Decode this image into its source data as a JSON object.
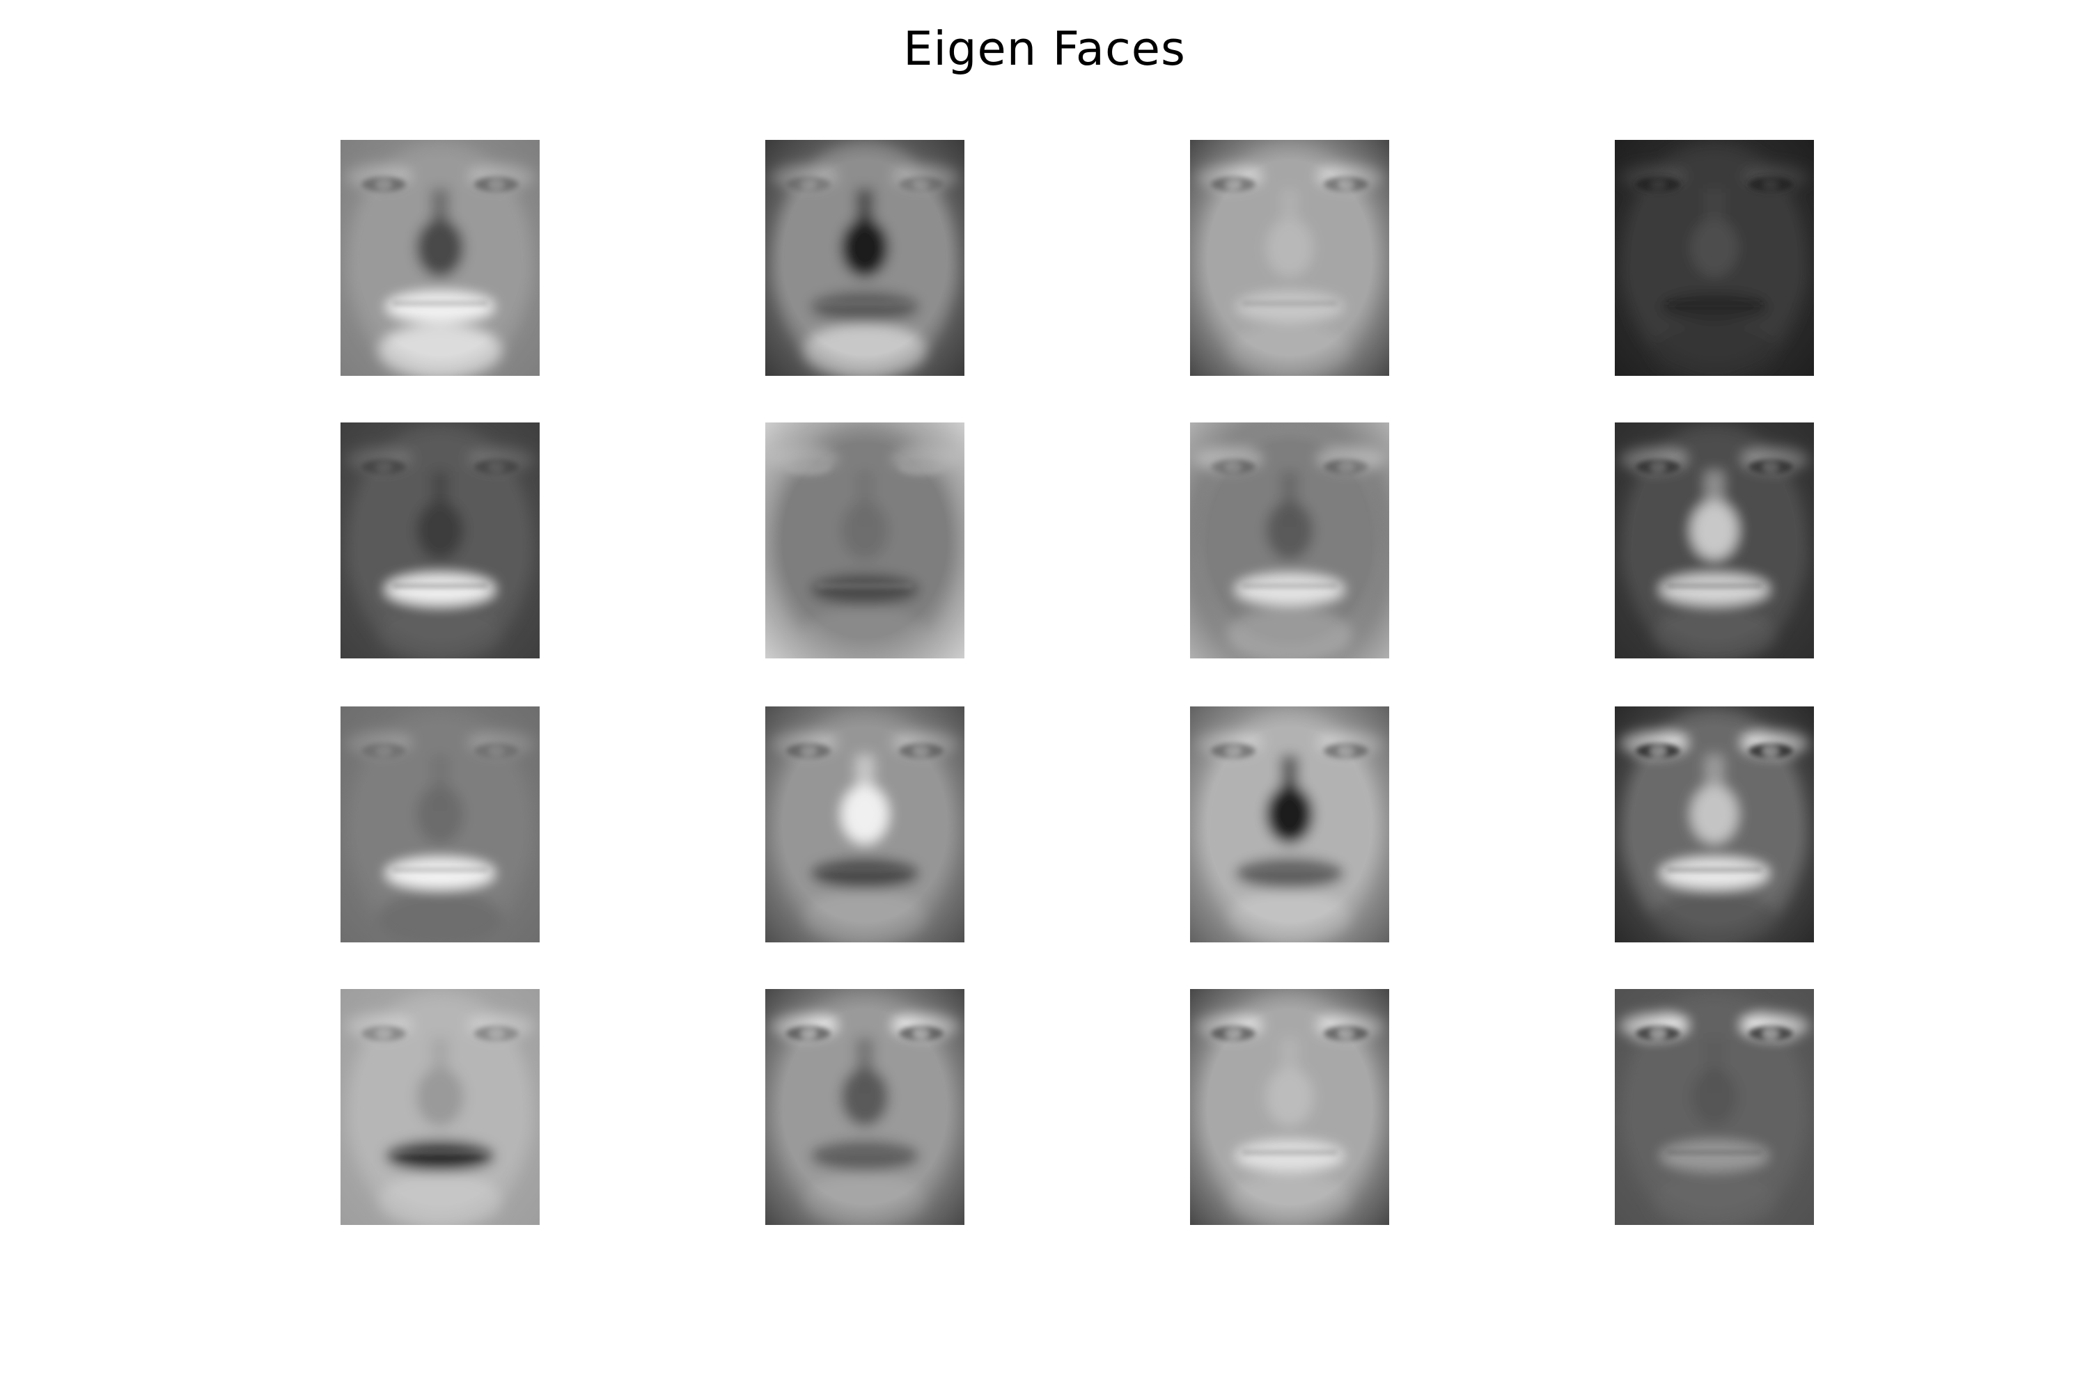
{
  "figure": {
    "title": "Eigen Faces",
    "rows": 4,
    "cols": 4
  },
  "panels": [
    {
      "name": "eigenface-1",
      "bg": "#8c8c8c",
      "face": "#9a9a9a",
      "brow": "#b4b4b4",
      "eyes": "#6e6e6e",
      "nose": "#4a4a4a",
      "mouth": "#f2f2f2",
      "chin": "#dcdcdc",
      "edge": "#7a7a7a"
    },
    {
      "name": "eigenface-2",
      "bg": "#6a6a6a",
      "face": "#8e8e8e",
      "brow": "#a8a8a8",
      "eyes": "#7c7c7c",
      "nose": "#1e1e1e",
      "mouth": "#5a5a5a",
      "chin": "#c8c8c8",
      "edge": "#2a2a2a"
    },
    {
      "name": "eigenface-3",
      "bg": "#9a9a9a",
      "face": "#a6a6a6",
      "brow": "#d0d0d0",
      "eyes": "#7a7a7a",
      "nose": "#b8b8b8",
      "mouth": "#c8c8c8",
      "chin": "#b0b0b0",
      "edge": "#2a2a2a"
    },
    {
      "name": "eigenface-4",
      "bg": "#2e2e2e",
      "face": "#3a3a3a",
      "brow": "#4a4a4a",
      "eyes": "#262626",
      "nose": "#4e4e4e",
      "mouth": "#2a2a2a",
      "chin": "#363636",
      "edge": "#1a1a1a"
    },
    {
      "name": "eigenface-5",
      "bg": "#4c4c4c",
      "face": "#5a5a5a",
      "brow": "#6e6e6e",
      "eyes": "#4a4a4a",
      "nose": "#3e3e3e",
      "mouth": "#f0f0f0",
      "chin": "#5e5e5e",
      "edge": "#3a3a3a"
    },
    {
      "name": "eigenface-6",
      "bg": "#8a8a8a",
      "face": "#7e7e7e",
      "brow": "#9e9e9e",
      "eyes": "#9a9a9a",
      "nose": "#6e6e6e",
      "mouth": "#4a4a4a",
      "chin": "#8a8a8a",
      "edge": "#e6e6e6"
    },
    {
      "name": "eigenface-7",
      "bg": "#6c6c6c",
      "face": "#7e7e7e",
      "brow": "#a8a8a8",
      "eyes": "#6a6a6a",
      "nose": "#5a5a5a",
      "mouth": "#e4e4e4",
      "chin": "#9a9a9a",
      "edge": "#c8c8c8"
    },
    {
      "name": "eigenface-8",
      "bg": "#3a3a3a",
      "face": "#4e4e4e",
      "brow": "#8a8a8a",
      "eyes": "#3a3a3a",
      "nose": "#c8c8c8",
      "mouth": "#d6d6d6",
      "chin": "#5a5a5a",
      "edge": "#2a2a2a"
    },
    {
      "name": "eigenface-9",
      "bg": "#787878",
      "face": "#7e7e7e",
      "brow": "#969696",
      "eyes": "#727272",
      "nose": "#6c6c6c",
      "mouth": "#f4f4f4",
      "chin": "#6e6e6e",
      "edge": "#6a6a6a"
    },
    {
      "name": "eigenface-10",
      "bg": "#8a8a8a",
      "face": "#969696",
      "brow": "#b6b6b6",
      "eyes": "#707070",
      "nose": "#f0f0f0",
      "mouth": "#4a4a4a",
      "chin": "#a4a4a4",
      "edge": "#3a3a3a"
    },
    {
      "name": "eigenface-11",
      "bg": "#a4a4a4",
      "face": "#b2b2b2",
      "brow": "#cacaca",
      "eyes": "#7a7a7a",
      "nose": "#1c1c1c",
      "mouth": "#5e5e5e",
      "chin": "#c2c2c2",
      "edge": "#4a4a4a"
    },
    {
      "name": "eigenface-12",
      "bg": "#4a4a4a",
      "face": "#6a6a6a",
      "brow": "#d8d8d8",
      "eyes": "#3e3e3e",
      "nose": "#c4c4c4",
      "mouth": "#eaeaea",
      "chin": "#5a5a5a",
      "edge": "#1e1e1e"
    },
    {
      "name": "eigenface-13",
      "bg": "#a8a8a8",
      "face": "#b6b6b6",
      "brow": "#cacaca",
      "eyes": "#8a8a8a",
      "nose": "#9a9a9a",
      "mouth": "#2a2a2a",
      "chin": "#c6c6c6",
      "edge": "#9a9a9a"
    },
    {
      "name": "eigenface-14",
      "bg": "#8e8e8e",
      "face": "#9a9a9a",
      "brow": "#e2e2e2",
      "eyes": "#6e6e6e",
      "nose": "#5a5a5a",
      "mouth": "#5e5e5e",
      "chin": "#a6a6a6",
      "edge": "#2e2e2e"
    },
    {
      "name": "eigenface-15",
      "bg": "#9a9a9a",
      "face": "#a8a8a8",
      "brow": "#dadada",
      "eyes": "#6c6c6c",
      "nose": "#bcbcbc",
      "mouth": "#e2e2e2",
      "chin": "#b6b6b6",
      "edge": "#2a2a2a"
    },
    {
      "name": "eigenface-16",
      "bg": "#5a5a5a",
      "face": "#626262",
      "brow": "#e6e6e6",
      "eyes": "#4a4a4a",
      "nose": "#565656",
      "mouth": "#9a9a9a",
      "chin": "#666666",
      "edge": "#4e4e4e"
    }
  ]
}
